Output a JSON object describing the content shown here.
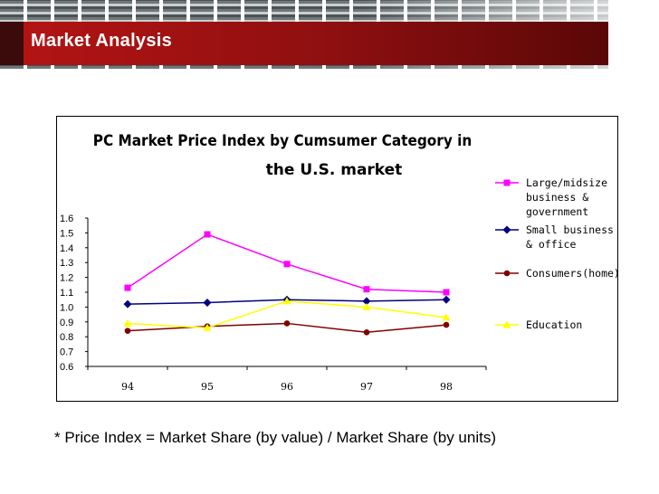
{
  "page": {
    "title": "Market Analysis",
    "footnote": "* Price Index = Market Share (by value) / Market Share (by units)"
  },
  "colors": {
    "banner_red": "#b51414",
    "series_large": "#ff00ff",
    "series_small": "#000080",
    "series_consumers": "#800000",
    "series_education": "#ffff00"
  },
  "chart_data": {
    "type": "line",
    "title_line1": "PC Market Price Index by Cumsumer Category in",
    "title_line2": "the U.S. market",
    "categories": [
      "94",
      "95",
      "96",
      "97",
      "98"
    ],
    "ylim": [
      0.6,
      1.6
    ],
    "yticks": [
      "0.6",
      "0.7",
      "0.8",
      "0.9",
      "1.0",
      "1.1",
      "1.2",
      "1.3",
      "1.4",
      "1.5",
      "1.6"
    ],
    "legend_position": "right",
    "series": [
      {
        "name": "Large/midsize business & government",
        "legend_lines": [
          "Large/midsize",
          "business &",
          "government"
        ],
        "values": [
          1.13,
          1.49,
          1.29,
          1.12,
          1.1
        ],
        "color": "#ff00ff",
        "marker": "square"
      },
      {
        "name": "Small business & office",
        "legend_lines": [
          "Small business",
          "& office"
        ],
        "values": [
          1.02,
          1.03,
          1.05,
          1.04,
          1.05
        ],
        "color": "#000080",
        "marker": "diamond"
      },
      {
        "name": "Consumers(home)",
        "legend_lines": [
          "Consumers(home)"
        ],
        "values": [
          0.84,
          0.87,
          0.89,
          0.83,
          0.88
        ],
        "color": "#800000",
        "marker": "circle"
      },
      {
        "name": "Education",
        "legend_lines": [
          "Education"
        ],
        "values": [
          0.89,
          0.86,
          1.04,
          1.0,
          0.93
        ],
        "color": "#ffff00",
        "marker": "triangle"
      }
    ]
  }
}
